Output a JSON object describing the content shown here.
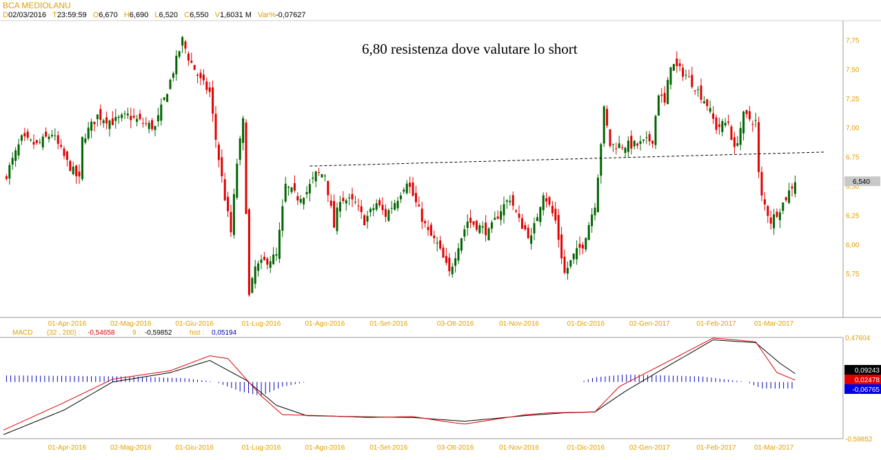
{
  "header": {
    "title": "BCA MEDIOLANU",
    "fields": [
      {
        "k": "D",
        "v": "02/03/2016"
      },
      {
        "k": "T",
        "v": "23:59:59"
      },
      {
        "k": "O",
        "v": "6,670"
      },
      {
        "k": "H",
        "v": "6,690"
      },
      {
        "k": "L",
        "v": "6,520"
      },
      {
        "k": "C",
        "v": "6,550"
      },
      {
        "k": "V",
        "v": "1,6031 M"
      },
      {
        "k": "Var%",
        "v": "-0,07627"
      }
    ]
  },
  "macd_header": {
    "label": "MACD",
    "params": "(32 , 200) :",
    "macd_value": "-0,54658",
    "signal_label": "9 :",
    "signal_value": "-0,59852",
    "hist_label": "hist :",
    "hist_value": "0,05194"
  },
  "colors": {
    "up": "#006400",
    "down": "#e00000",
    "axis_text": "#e0a000",
    "macd": "#e00000",
    "signal": "#000000",
    "hist": "#0000c0"
  },
  "chart_data": [
    {
      "type": "candlestick",
      "title": "BCA MEDIOLANU",
      "annotation": "6,80 resistenza dove valutare lo short",
      "ylim": [
        5.45,
        7.93
      ],
      "yticks": [
        "7,75",
        "7,50",
        "7,25",
        "7,00",
        "6,75",
        "6,50",
        "6,25",
        "6,00",
        "5,75"
      ],
      "ytick_values": [
        7.75,
        7.5,
        7.25,
        7.0,
        6.75,
        6.5,
        6.25,
        6.0,
        5.75
      ],
      "xticks": [
        "01-Apr-2016",
        "02-Mag-2016",
        "01-Giu-2016",
        "01-Lug-2016",
        "01-Ago-2016",
        "01-Set-2016",
        "03-Ott-2016",
        "01-Nov-2016",
        "01-Dic-2016",
        "02-Gen-2017",
        "01-Feb-2017",
        "01-Mar-2017"
      ],
      "xtick_days": [
        21,
        42,
        63,
        85,
        106,
        127,
        149,
        170,
        192,
        213,
        235,
        254
      ],
      "last_price_label": "6,540",
      "last_price": 6.54,
      "resistance_line": {
        "from": [
          101,
          6.67
        ],
        "to": [
          271,
          6.79
        ]
      },
      "close_keypoints": [
        [
          1,
          6.6
        ],
        [
          6,
          6.9
        ],
        [
          11,
          6.85
        ],
        [
          16,
          6.95
        ],
        [
          21,
          6.7
        ],
        [
          25,
          6.55
        ],
        [
          26,
          6.9
        ],
        [
          31,
          7.1
        ],
        [
          36,
          7.05
        ],
        [
          41,
          7.1
        ],
        [
          45,
          7.05
        ],
        [
          50,
          7.0
        ],
        [
          55,
          7.4
        ],
        [
          59,
          7.75
        ],
        [
          61,
          7.6
        ],
        [
          65,
          7.4
        ],
        [
          68,
          7.3
        ],
        [
          70,
          6.9
        ],
        [
          73,
          6.4
        ],
        [
          75,
          6.1
        ],
        [
          77,
          6.7
        ],
        [
          79,
          7.05
        ],
        [
          81,
          5.55
        ],
        [
          83,
          5.8
        ],
        [
          86,
          5.85
        ],
        [
          90,
          5.9
        ],
        [
          93,
          6.5
        ],
        [
          97,
          6.4
        ],
        [
          100,
          6.45
        ],
        [
          103,
          6.6
        ],
        [
          106,
          6.6
        ],
        [
          109,
          6.15
        ],
        [
          111,
          6.4
        ],
        [
          116,
          6.35
        ],
        [
          119,
          6.2
        ],
        [
          123,
          6.35
        ],
        [
          126,
          6.25
        ],
        [
          130,
          6.4
        ],
        [
          133,
          6.55
        ],
        [
          136,
          6.35
        ],
        [
          140,
          6.1
        ],
        [
          143,
          6.0
        ],
        [
          147,
          5.75
        ],
        [
          150,
          6.0
        ],
        [
          153,
          6.2
        ],
        [
          157,
          6.15
        ],
        [
          160,
          6.1
        ],
        [
          164,
          6.3
        ],
        [
          167,
          6.4
        ],
        [
          170,
          6.2
        ],
        [
          174,
          6.05
        ],
        [
          178,
          6.45
        ],
        [
          182,
          6.2
        ],
        [
          185,
          5.75
        ],
        [
          188,
          5.9
        ],
        [
          191,
          6.0
        ],
        [
          195,
          6.35
        ],
        [
          196,
          6.6
        ],
        [
          198,
          7.15
        ],
        [
          200,
          6.85
        ],
        [
          205,
          6.85
        ],
        [
          209,
          6.85
        ],
        [
          214,
          6.9
        ],
        [
          216,
          7.3
        ],
        [
          218,
          7.2
        ],
        [
          220,
          7.55
        ],
        [
          225,
          7.45
        ],
        [
          228,
          7.35
        ],
        [
          232,
          7.2
        ],
        [
          235,
          7.0
        ],
        [
          239,
          7.05
        ],
        [
          241,
          6.8
        ],
        [
          244,
          7.1
        ],
        [
          248,
          7.05
        ],
        [
          249,
          6.6
        ],
        [
          250,
          6.4
        ],
        [
          253,
          6.2
        ],
        [
          257,
          6.35
        ],
        [
          261,
          6.55
        ]
      ]
    },
    {
      "type": "line",
      "title": "MACD",
      "ylim": [
        -0.59852,
        0.47604
      ],
      "yticks": [
        "0,47604",
        "-0,59852"
      ],
      "value_labels": {
        "signal": "0,09243",
        "macd": "0,02478",
        "hist": "-0,06765"
      },
      "xticks": [
        "01-Apr-2016",
        "02-Mag-2016",
        "01-Giu-2016",
        "01-Lug-2016",
        "01-Ago-2016",
        "01-Set-2016",
        "03-Ott-2016",
        "01-Nov-2016",
        "01-Dic-2016",
        "02-Gen-2017",
        "01-Feb-2017",
        "01-Mar-2017"
      ],
      "series": [
        {
          "name": "signal",
          "points": [
            [
              1,
              -0.55
            ],
            [
              20,
              -0.3
            ],
            [
              36,
              0.0
            ],
            [
              55,
              0.1
            ],
            [
              68,
              0.23
            ],
            [
              80,
              0.02
            ],
            [
              90,
              -0.25
            ],
            [
              100,
              -0.36
            ],
            [
              115,
              -0.37
            ],
            [
              135,
              -0.38
            ],
            [
              152,
              -0.42
            ],
            [
              172,
              -0.36
            ],
            [
              185,
              -0.33
            ],
            [
              195,
              -0.32
            ],
            [
              205,
              -0.1
            ],
            [
              218,
              0.15
            ],
            [
              234,
              0.45
            ],
            [
              248,
              0.42
            ],
            [
              256,
              0.2
            ],
            [
              261,
              0.09
            ]
          ]
        },
        {
          "name": "macd",
          "points": [
            [
              1,
              -0.5
            ],
            [
              20,
              -0.22
            ],
            [
              36,
              0.03
            ],
            [
              55,
              0.12
            ],
            [
              68,
              0.28
            ],
            [
              74,
              0.25
            ],
            [
              85,
              -0.15
            ],
            [
              92,
              -0.35
            ],
            [
              105,
              -0.36
            ],
            [
              120,
              -0.38
            ],
            [
              135,
              -0.37
            ],
            [
              145,
              -0.42
            ],
            [
              152,
              -0.45
            ],
            [
              172,
              -0.35
            ],
            [
              180,
              -0.33
            ],
            [
              195,
              -0.32
            ],
            [
              203,
              -0.05
            ],
            [
              215,
              0.15
            ],
            [
              234,
              0.47
            ],
            [
              248,
              0.43
            ],
            [
              255,
              0.1
            ],
            [
              261,
              0.02
            ]
          ]
        },
        {
          "name": "hist",
          "points": [
            [
              1,
              0.07
            ],
            [
              40,
              0.06
            ],
            [
              60,
              0.04
            ],
            [
              70,
              0.0
            ],
            [
              78,
              -0.1
            ],
            [
              85,
              -0.15
            ],
            [
              92,
              -0.05
            ],
            [
              100,
              0.0
            ],
            [
              150,
              0.0
            ],
            [
              190,
              0.0
            ],
            [
              195,
              0.05
            ],
            [
              205,
              0.08
            ],
            [
              230,
              0.06
            ],
            [
              245,
              0.0
            ],
            [
              250,
              -0.07
            ],
            [
              261,
              -0.07
            ]
          ]
        }
      ]
    }
  ]
}
